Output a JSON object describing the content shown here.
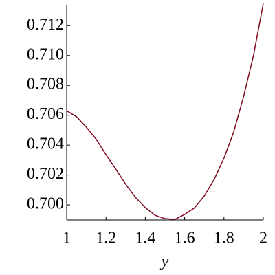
{
  "chart_data": {
    "type": "line",
    "x_label": "y",
    "x": [
      1,
      1.05,
      1.1,
      1.15,
      1.2,
      1.25,
      1.3,
      1.35,
      1.4,
      1.45,
      1.5,
      1.55,
      1.6,
      1.65,
      1.7,
      1.75,
      1.8,
      1.85,
      1.9,
      1.95,
      2
    ],
    "series": [
      {
        "color": "#7f0a1e",
        "values": [
          0.7063,
          0.7059,
          0.7052,
          0.7044,
          0.70336,
          0.7024,
          0.70138,
          0.7005,
          0.69982,
          0.6993,
          0.69908,
          0.69903,
          0.69936,
          0.6998,
          0.7006,
          0.7017,
          0.70313,
          0.7049,
          0.70726,
          0.71,
          0.71347
        ]
      }
    ],
    "xlim": [
      1,
      2
    ],
    "xticks": [
      1,
      1.2,
      1.4,
      1.6,
      1.8,
      2
    ],
    "ylim": [
      0.69899,
      0.71335
    ],
    "yticks": [
      {
        "value": 0.7,
        "label": "0.700"
      },
      {
        "value": 0.702,
        "label": "0.702"
      },
      {
        "value": 0.704,
        "label": "0.704"
      },
      {
        "value": 0.706,
        "label": "0.706"
      },
      {
        "value": 0.708,
        "label": "0.708"
      },
      {
        "value": 0.71,
        "label": "0.710"
      },
      {
        "value": 0.712,
        "label": "0.712"
      }
    ]
  }
}
